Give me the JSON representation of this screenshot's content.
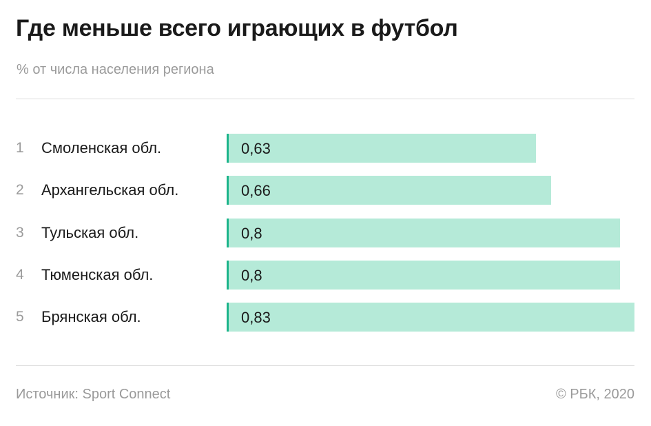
{
  "chart_data": {
    "type": "bar",
    "orientation": "horizontal",
    "title": "Где меньше всего играющих в футбол",
    "subtitle": "% от числа населения региона",
    "ranks": [
      "1",
      "2",
      "3",
      "4",
      "5"
    ],
    "categories": [
      "Смоленская обл.",
      "Архангельская обл.",
      "Тульская обл.",
      "Тюменская обл.",
      "Брянская обл."
    ],
    "values": [
      0.63,
      0.66,
      0.8,
      0.8,
      0.83
    ],
    "value_labels": [
      "0,63",
      "0,66",
      "0,8",
      "0,8",
      "0,83"
    ],
    "xlim": [
      0,
      0.83
    ],
    "grid": false,
    "legend": "none",
    "colors": {
      "bar": "#b5ead8",
      "marker": "#1bb48a"
    }
  },
  "footer": {
    "source": "Источник: Sport Connect",
    "credit": "© РБК, 2020"
  }
}
